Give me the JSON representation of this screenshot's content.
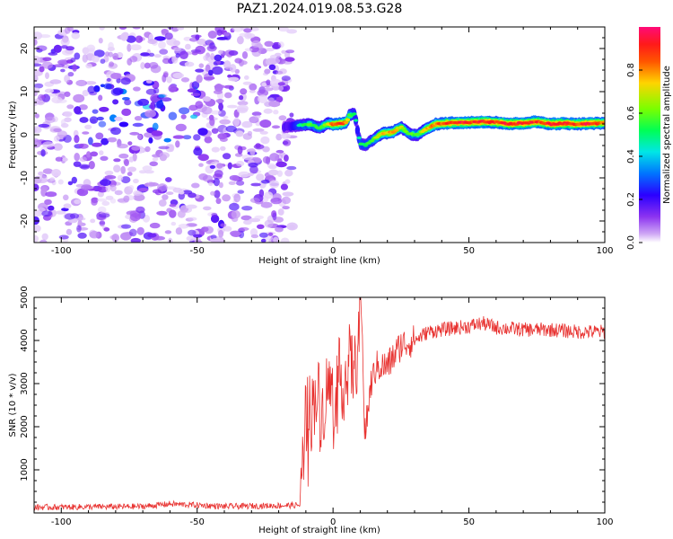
{
  "title": "PAZ1.2024.019.08.53.G28",
  "chart_data": [
    {
      "type": "heatmap",
      "name": "spectrogram",
      "xlabel": "Height of straight line (km)",
      "ylabel": "Frequency (Hz)",
      "xlim": [
        -110,
        100
      ],
      "ylim": [
        -25,
        25
      ],
      "xticks": [
        -100,
        -50,
        0,
        50,
        100
      ],
      "yticks": [
        -20,
        -10,
        0,
        10,
        20
      ],
      "colorbar": {
        "label": "Normalized spectral amplitude",
        "range": [
          0.0,
          1.0
        ],
        "ticks": [
          "0.0",
          "0.2",
          "0.4",
          "0.6",
          "0.8"
        ],
        "colormap": [
          "#ffffff",
          "#cfa8f5",
          "#8c33f0",
          "#2b00ff",
          "#0074ff",
          "#00e6e6",
          "#00ff55",
          "#7aff00",
          "#ffd400",
          "#ff5500",
          "#ff1a1a",
          "#ff0a78"
        ]
      },
      "signal_track": {
        "description_free": true,
        "x": [
          -18,
          -15,
          -12,
          -8,
          -5,
          -2,
          0,
          3,
          5,
          6,
          8,
          9,
          10,
          12,
          15,
          18,
          22,
          25,
          28,
          31,
          34,
          38,
          42,
          46,
          50,
          55,
          60,
          65,
          70,
          75,
          80,
          85,
          90,
          95,
          100
        ],
        "freq": [
          1.8,
          2.0,
          2.2,
          2.4,
          1.5,
          2.6,
          2.4,
          2.6,
          3.0,
          4.5,
          4.8,
          1.0,
          -2.0,
          -2.4,
          -1.0,
          0.3,
          0.6,
          1.8,
          0.2,
          0.0,
          1.2,
          2.5,
          2.7,
          2.8,
          2.8,
          3.0,
          2.9,
          2.5,
          2.7,
          3.0,
          2.5,
          2.6,
          2.5,
          2.6,
          2.7
        ],
        "amplitude": [
          0.3,
          0.4,
          0.5,
          0.6,
          0.55,
          0.7,
          0.85,
          0.9,
          0.8,
          0.6,
          0.5,
          0.45,
          0.55,
          0.5,
          0.6,
          0.75,
          0.8,
          0.7,
          0.6,
          0.55,
          0.75,
          0.85,
          0.9,
          0.95,
          0.9,
          0.95,
          0.9,
          0.95,
          0.95,
          0.9,
          0.95,
          0.95,
          0.9,
          0.95,
          0.85
        ]
      },
      "noise_region_x": [
        -110,
        -15
      ]
    },
    {
      "type": "line",
      "name": "snr",
      "xlabel": "Height of straight line (km)",
      "ylabel": "SNR (10 * v/v)",
      "xlim": [
        -110,
        100
      ],
      "ylim": [
        0,
        5000
      ],
      "xticks": [
        -100,
        -50,
        0,
        50,
        100
      ],
      "yticks": [
        1000,
        2000,
        3000,
        4000,
        5000
      ],
      "color": "#e8312f",
      "anchor_x": [
        -110,
        -70,
        -60,
        -40,
        -12,
        -11,
        -10,
        -8,
        -6,
        -4,
        -2,
        0,
        2,
        4,
        6,
        8,
        10,
        12,
        14,
        16,
        20,
        25,
        30,
        35,
        40,
        50,
        55,
        60,
        70,
        80,
        90,
        100
      ],
      "anchor_y": [
        130,
        150,
        210,
        150,
        180,
        1200,
        2600,
        2300,
        2900,
        2300,
        3000,
        2700,
        3200,
        3000,
        3500,
        3300,
        4200,
        1900,
        3000,
        3400,
        3400,
        3900,
        4000,
        4200,
        4250,
        4330,
        4400,
        4300,
        4250,
        4250,
        4200,
        4200
      ]
    }
  ]
}
